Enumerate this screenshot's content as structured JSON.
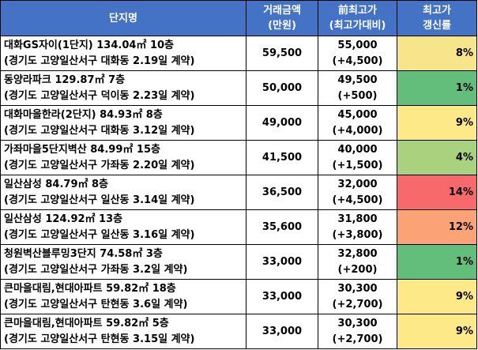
{
  "header": {
    "name": "단지명",
    "price_l1": "거래금액",
    "price_l2": "(만원)",
    "prev_l1": "前최고가",
    "prev_l2": "(최고가대비)",
    "rate_l1": "최고가",
    "rate_l2": "갱신률"
  },
  "rows": [
    {
      "title": "대화GS자이(1단지) 134.04㎡ 10층",
      "detail": "(경기도 고양일산서구 대화동 2.19일 계약)",
      "price": "59,500",
      "prev": "55,000",
      "diff": "(+4,500)",
      "rate": "8%",
      "color": "#f6e58a"
    },
    {
      "title": "동양라파크 129.87㎡ 7층",
      "detail": "(경기도 고양일산서구 덕이동 2.23일 계약)",
      "price": "50,000",
      "prev": "49,500",
      "diff": "(+500)",
      "rate": "1%",
      "color": "#63be7b"
    },
    {
      "title": "대화마을한라(2단지) 84.93㎡ 8층",
      "detail": "(경기도 고양일산서구 대화동 3.12일 계약)",
      "price": "49,000",
      "prev": "45,000",
      "diff": "(+4,000)",
      "rate": "9%",
      "color": "#fde987"
    },
    {
      "title": "가좌마을5단지벽산 84.99㎡ 15층",
      "detail": "(경기도 고양일산서구 가좌동 2.20일 계약)",
      "price": "41,500",
      "prev": "40,000",
      "diff": "(+1,500)",
      "rate": "4%",
      "color": "#a9d27f"
    },
    {
      "title": "일산삼성 84.79㎡ 8층",
      "detail": "(경기도 고양일산서구 일산동 3.14일 계약)",
      "price": "36,500",
      "prev": "32,000",
      "diff": "(+4,500)",
      "rate": "14%",
      "color": "#f8696b"
    },
    {
      "title": "일산삼성 124.92㎡ 13층",
      "detail": "(경기도 고양일산서구 일산동 3.16일 계약)",
      "price": "35,600",
      "prev": "31,800",
      "diff": "(+3,800)",
      "rate": "12%",
      "color": "#fba276"
    },
    {
      "title": "청원벽산블루밍3단지 74.58㎡ 3층",
      "detail": "(경기도 고양일산서구 가좌동 3.2일 계약)",
      "price": "33,000",
      "prev": "32,800",
      "diff": "(+200)",
      "rate": "1%",
      "color": "#63be7b"
    },
    {
      "title": "큰마을대림,현대아파트 59.82㎡ 18층",
      "detail": "(경기도 고양일산서구 탄현동 3.6일 계약)",
      "price": "33,000",
      "prev": "30,300",
      "diff": "(+2,700)",
      "rate": "9%",
      "color": "#fde987"
    },
    {
      "title": "큰마을대림,현대아파트 59.82㎡ 5층",
      "detail": "(경기도 고양일산서구 탄현동 3.15일 계약)",
      "price": "33,000",
      "prev": "30,300",
      "diff": "(+2,700)",
      "rate": "9%",
      "color": "#fde987"
    }
  ]
}
